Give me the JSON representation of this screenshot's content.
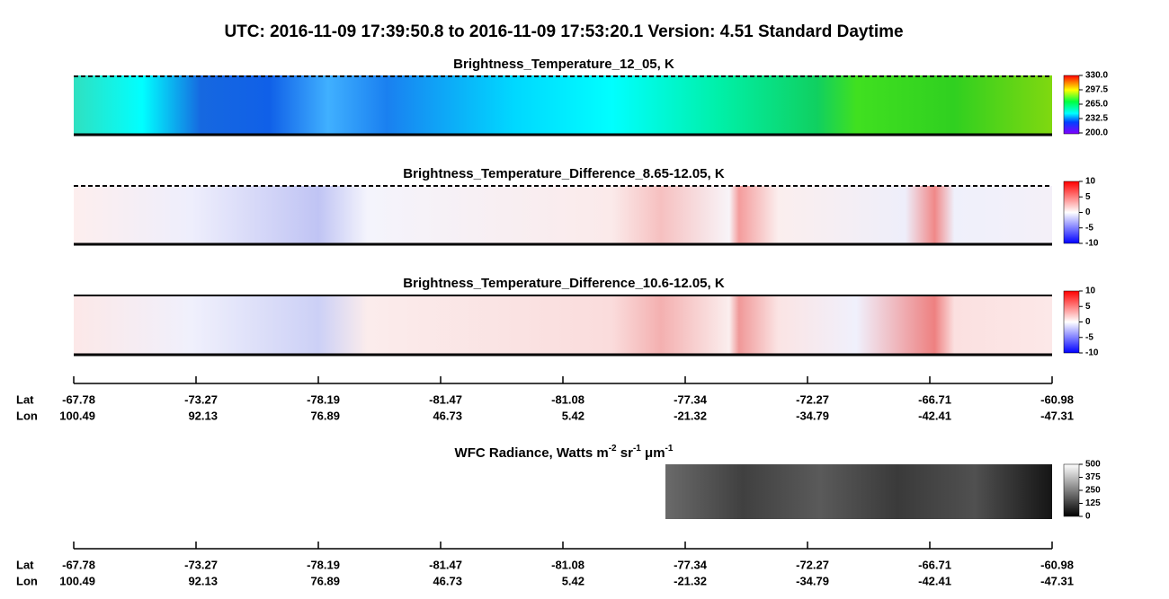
{
  "title": "UTC:  2016-11-09   17:39:50.8  to  2016-11-09   17:53:20.1    Version: 4.51  Standard Daytime",
  "panels": [
    {
      "title": "Brightness_Temperature_12_05, K",
      "colorbar": {
        "lim": [
          200,
          330
        ],
        "ticks": [
          {
            "value": 330,
            "label": "330.0"
          },
          {
            "value": 297.5,
            "label": "297.5"
          },
          {
            "value": 265,
            "label": "265.0"
          },
          {
            "value": 232.5,
            "label": "232.5"
          },
          {
            "value": 200,
            "label": "200.0"
          }
        ]
      }
    },
    {
      "title": "Brightness_Temperature_Difference_8.65-12.05, K",
      "colorbar": {
        "lim": [
          -10,
          10
        ],
        "ticks": [
          10,
          5,
          0,
          -5,
          -10
        ]
      }
    },
    {
      "title": "Brightness_Temperature_Difference_10.6-12.05, K",
      "colorbar": {
        "lim": [
          -10,
          10
        ],
        "ticks": [
          10,
          5,
          0,
          -5,
          -10
        ]
      }
    }
  ],
  "axes": [
    {
      "row_labels": [
        "Lat",
        "Lon"
      ],
      "lat": [
        -67.78,
        -73.27,
        -78.19,
        -81.47,
        -81.08,
        -77.34,
        -72.27,
        -66.71,
        -60.98
      ],
      "lon": [
        100.49,
        92.13,
        76.89,
        46.73,
        5.42,
        -21.32,
        -34.79,
        -42.41,
        -47.31
      ]
    },
    {
      "row_labels": [
        "Lat",
        "Lon"
      ],
      "lat": [
        -67.78,
        -73.27,
        -78.19,
        -81.47,
        -81.08,
        -77.34,
        -72.27,
        -66.71,
        -60.98
      ],
      "lon": [
        100.49,
        92.13,
        76.89,
        46.73,
        5.42,
        -21.32,
        -34.79,
        -42.41,
        -47.31
      ]
    }
  ],
  "wfc": {
    "title_parts": [
      "WFC Radiance, Watts m",
      "-2",
      " sr",
      "-1",
      " μm",
      "-1"
    ],
    "colorbar": {
      "lim": [
        0,
        500
      ],
      "ticks": [
        500,
        375,
        250,
        125,
        0
      ]
    }
  }
}
